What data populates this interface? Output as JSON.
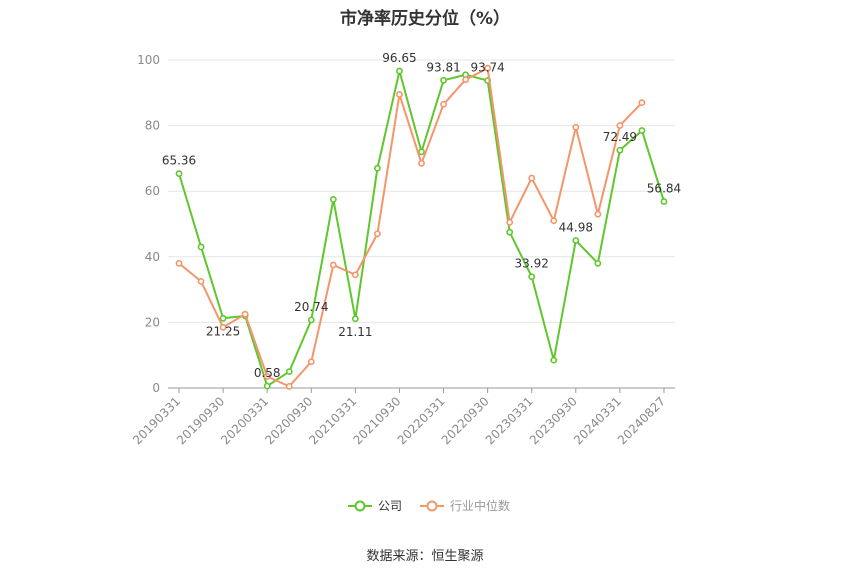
{
  "title": "市净率历史分位（%）",
  "source": "数据来源：恒生聚源",
  "chart_data": {
    "type": "line",
    "title": "市净率历史分位（%）",
    "ylim": [
      0,
      100
    ],
    "yticks": [
      0,
      20,
      40,
      60,
      80,
      100
    ],
    "grid": true,
    "legend_position": "bottom",
    "x": [
      "20190331",
      "20190630",
      "20190930",
      "20191231",
      "20200331",
      "20200630",
      "20200930",
      "20201231",
      "20210331",
      "20210630",
      "20210930",
      "20211231",
      "20220331",
      "20220630",
      "20220930",
      "20221231",
      "20230331",
      "20230630",
      "20230930",
      "20231231",
      "20240331",
      "20240630",
      "20240827"
    ],
    "xtick_labels": [
      "20190331",
      "20190930",
      "20200331",
      "20200930",
      "20210331",
      "20210930",
      "20220331",
      "20220930",
      "20230331",
      "20230930",
      "20240331",
      "20240827"
    ],
    "series": [
      {
        "name": "公司",
        "color": "#5ec72d",
        "values": [
          65.36,
          43,
          21.25,
          22,
          0.58,
          5,
          20.74,
          57.5,
          21.11,
          67,
          96.65,
          72,
          93.81,
          95.5,
          93.74,
          47.5,
          33.92,
          8.5,
          44.98,
          38,
          72.49,
          78.5,
          56.84
        ]
      },
      {
        "name": "行业中位数",
        "color": "#f4956a",
        "values": [
          38,
          32.5,
          18.5,
          22.5,
          3.5,
          0.5,
          8,
          37.5,
          34.5,
          47,
          89.5,
          68.5,
          86.5,
          94,
          97.5,
          50.5,
          64,
          51,
          79.5,
          53,
          80,
          87,
          null
        ]
      }
    ],
    "data_labels": [
      {
        "index": 0,
        "text": "65.36"
      },
      {
        "index": 2,
        "text": "21.25"
      },
      {
        "index": 4,
        "text": "0.58"
      },
      {
        "index": 6,
        "text": "20.74"
      },
      {
        "index": 8,
        "text": "21.11"
      },
      {
        "index": 10,
        "text": "96.65"
      },
      {
        "index": 12,
        "text": "93.81"
      },
      {
        "index": 14,
        "text": "93.74"
      },
      {
        "index": 16,
        "text": "33.92"
      },
      {
        "index": 18,
        "text": "44.98"
      },
      {
        "index": 20,
        "text": "72.49"
      },
      {
        "index": 22,
        "text": "56.84"
      }
    ]
  }
}
